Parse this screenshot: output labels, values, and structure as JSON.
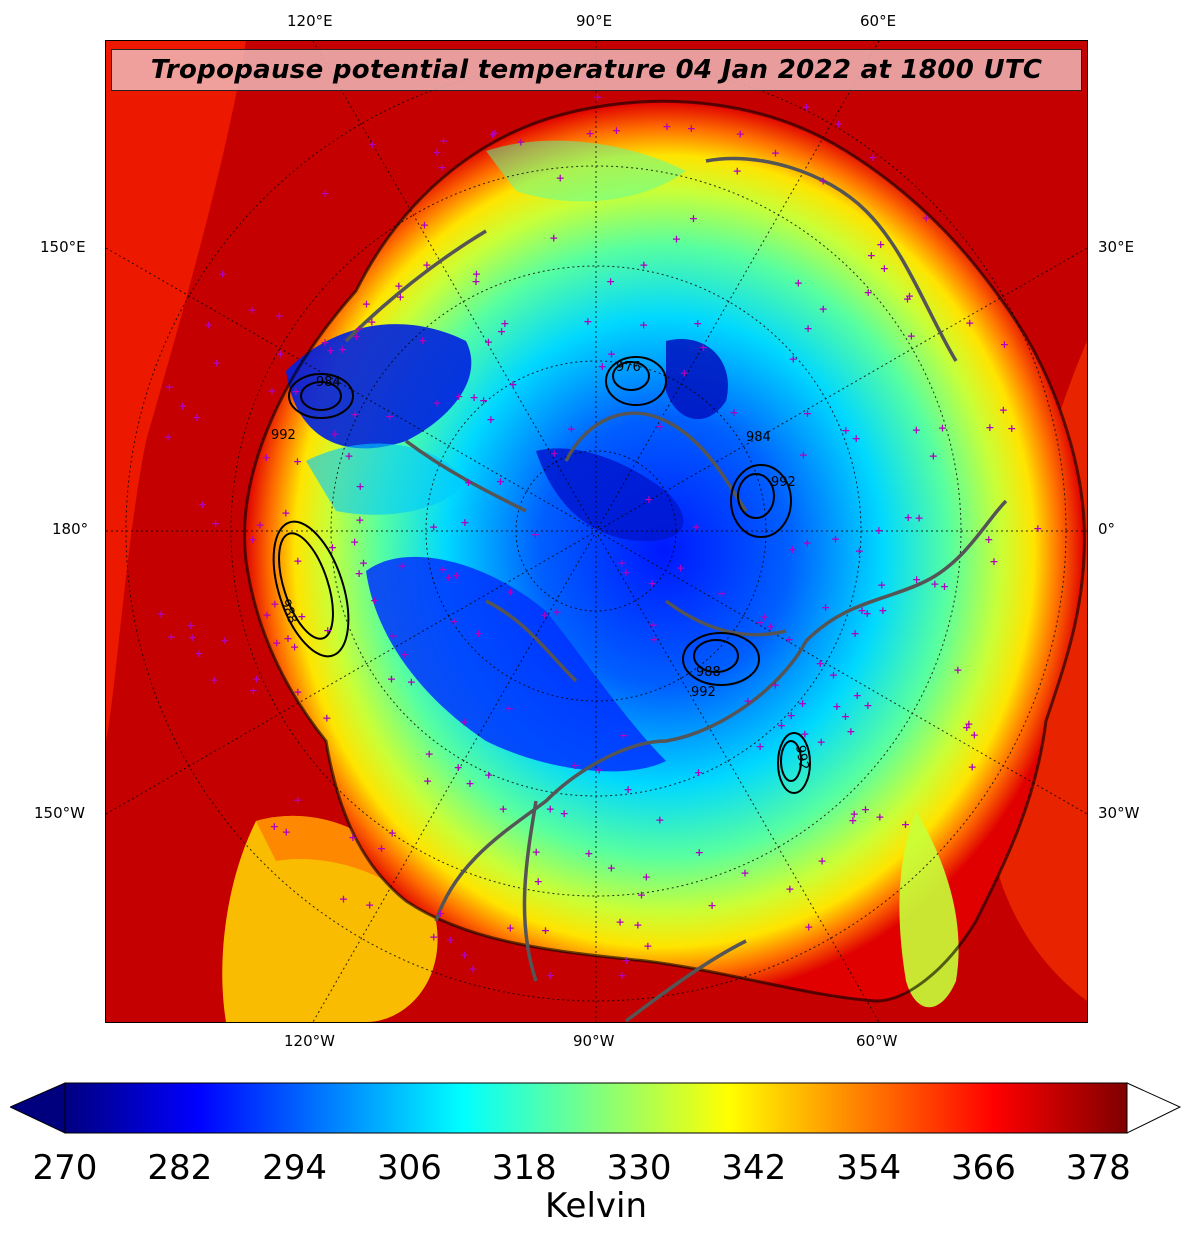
{
  "title": "Tropopause potential temperature 04 Jan 2022 at 1800 UTC",
  "lon_labels": {
    "top": [
      "120°E",
      "90°E",
      "60°E"
    ],
    "bottom": [
      "120°W",
      "90°W",
      "60°W"
    ],
    "left": [
      "150°E",
      "180°",
      "150°W"
    ],
    "right": [
      "30°E",
      "0°",
      "30°W"
    ]
  },
  "contour_labels": [
    "984",
    "992",
    "988",
    "976",
    "984",
    "992",
    "988",
    "992",
    "992"
  ],
  "colorbar": {
    "label": "Kelvin",
    "ticks": [
      "270",
      "282",
      "294",
      "306",
      "318",
      "330",
      "342",
      "354",
      "366",
      "378"
    ],
    "min": 270,
    "max": 381,
    "extend_low_color": "#00007f",
    "extend_high_color": "#ffffff",
    "colormap": "jet",
    "colormap_stops": [
      "#00007f",
      "#0000ff",
      "#007fff",
      "#00ffff",
      "#7fff7f",
      "#ffff00",
      "#ff7f00",
      "#ff0000",
      "#7f0000"
    ]
  },
  "marker_color": "#b000c0",
  "coastline_color": "#555555"
}
